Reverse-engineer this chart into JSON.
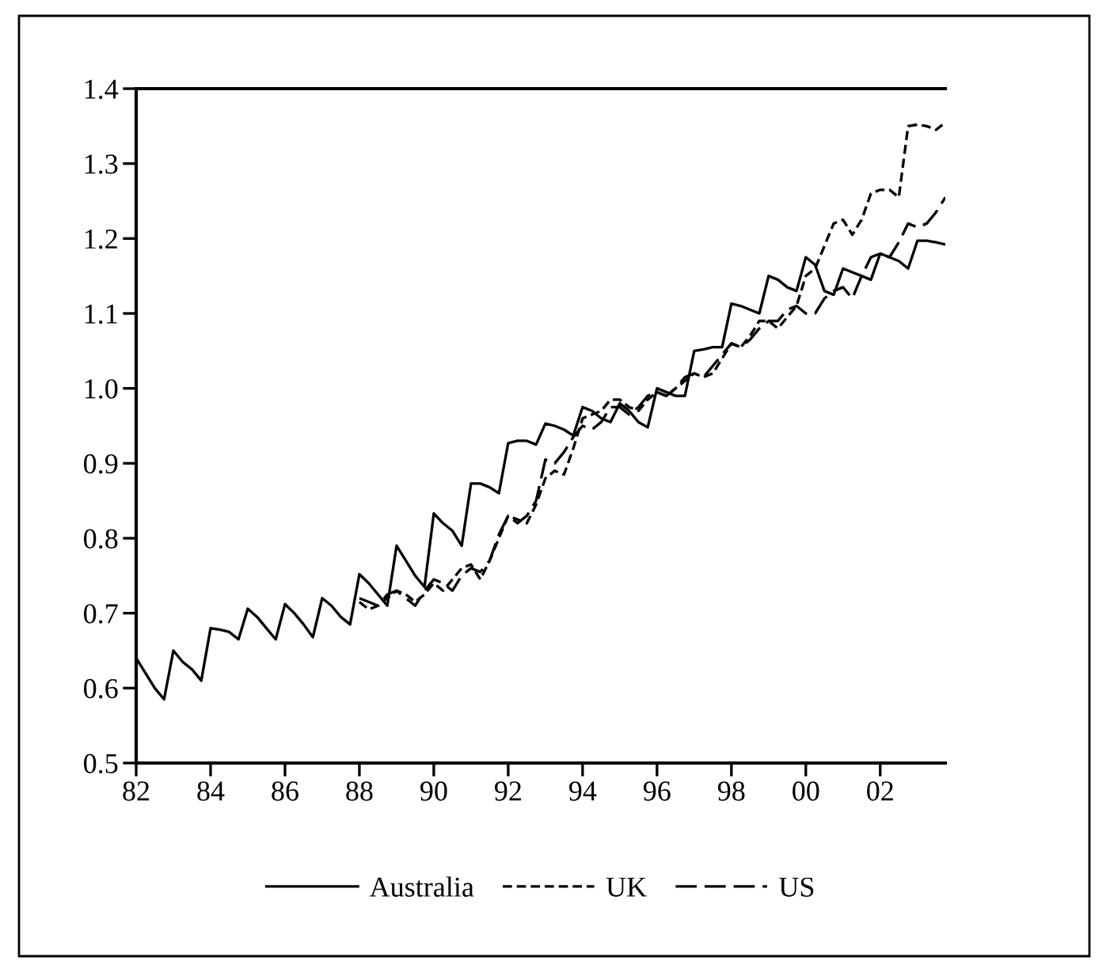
{
  "chart_data": {
    "type": "line",
    "x": [
      1982.0,
      1982.25,
      1982.5,
      1982.75,
      1983.0,
      1983.25,
      1983.5,
      1983.75,
      1984.0,
      1984.25,
      1984.5,
      1984.75,
      1985.0,
      1985.25,
      1985.5,
      1985.75,
      1986.0,
      1986.25,
      1986.5,
      1986.75,
      1987.0,
      1987.25,
      1987.5,
      1987.75,
      1988.0,
      1988.25,
      1988.5,
      1988.75,
      1989.0,
      1989.25,
      1989.5,
      1989.75,
      1990.0,
      1990.25,
      1990.5,
      1990.75,
      1991.0,
      1991.25,
      1991.5,
      1991.75,
      1992.0,
      1992.25,
      1992.5,
      1992.75,
      1993.0,
      1993.25,
      1993.5,
      1993.75,
      1994.0,
      1994.25,
      1994.5,
      1994.75,
      1995.0,
      1995.25,
      1995.5,
      1995.75,
      1996.0,
      1996.25,
      1996.5,
      1996.75,
      1997.0,
      1997.25,
      1997.5,
      1997.75,
      1998.0,
      1998.25,
      1998.5,
      1998.75,
      1999.0,
      1999.25,
      1999.5,
      1999.75,
      2000.0,
      2000.25,
      2000.5,
      2000.75,
      2001.0,
      2001.25,
      2001.5,
      2001.75,
      2002.0,
      2002.25,
      2002.5,
      2002.75,
      2003.0,
      2003.25,
      2003.5,
      2003.75
    ],
    "series": [
      {
        "name": "Australia",
        "color": "#000000",
        "line_style": "solid",
        "values": [
          0.64,
          0.62,
          0.6,
          0.585,
          0.65,
          0.635,
          0.625,
          0.61,
          0.68,
          0.678,
          0.675,
          0.665,
          0.706,
          0.695,
          0.68,
          0.665,
          0.712,
          0.7,
          0.685,
          0.668,
          0.72,
          0.71,
          0.695,
          0.685,
          0.752,
          0.74,
          0.725,
          0.71,
          0.79,
          0.77,
          0.75,
          0.735,
          0.833,
          0.82,
          0.81,
          0.79,
          0.873,
          0.873,
          0.868,
          0.86,
          0.927,
          0.93,
          0.93,
          0.925,
          0.953,
          0.95,
          0.945,
          0.937,
          0.975,
          0.97,
          0.96,
          0.955,
          0.98,
          0.97,
          0.955,
          0.948,
          1.0,
          0.995,
          0.99,
          0.99,
          1.05,
          1.052,
          1.055,
          1.055,
          1.113,
          1.11,
          1.105,
          1.1,
          1.15,
          1.145,
          1.135,
          1.13,
          1.175,
          1.165,
          1.13,
          1.125,
          1.16,
          1.155,
          1.15,
          1.145,
          1.18,
          1.175,
          1.17,
          1.16,
          1.197,
          1.197,
          1.195,
          1.192
        ]
      },
      {
        "name": "UK",
        "color": "#000000",
        "line_style": "dotted",
        "values": [
          null,
          null,
          null,
          null,
          null,
          null,
          null,
          null,
          null,
          null,
          null,
          null,
          null,
          null,
          null,
          null,
          null,
          null,
          null,
          null,
          null,
          null,
          null,
          null,
          0.715,
          0.705,
          0.71,
          0.72,
          0.73,
          0.725,
          0.715,
          0.725,
          0.74,
          0.73,
          0.745,
          0.76,
          0.765,
          0.745,
          0.77,
          0.8,
          0.83,
          0.825,
          0.82,
          0.845,
          0.88,
          0.89,
          0.885,
          0.92,
          0.96,
          0.965,
          0.97,
          0.985,
          0.985,
          0.975,
          0.97,
          0.985,
          0.995,
          0.99,
          1.0,
          1.01,
          1.02,
          1.015,
          1.02,
          1.04,
          1.06,
          1.055,
          1.07,
          1.09,
          1.09,
          1.08,
          1.095,
          1.11,
          1.15,
          1.16,
          1.19,
          1.22,
          1.225,
          1.205,
          1.225,
          1.26,
          1.265,
          1.265,
          1.255,
          1.35,
          1.352,
          1.35,
          1.345,
          1.355
        ]
      },
      {
        "name": "US",
        "color": "#000000",
        "line_style": "dashed",
        "values": [
          null,
          null,
          null,
          null,
          null,
          null,
          null,
          null,
          null,
          null,
          null,
          null,
          null,
          null,
          null,
          null,
          null,
          null,
          null,
          null,
          null,
          null,
          null,
          null,
          0.72,
          0.715,
          0.71,
          0.725,
          0.73,
          0.72,
          0.71,
          0.73,
          0.745,
          0.74,
          0.73,
          0.75,
          0.76,
          0.755,
          0.77,
          0.805,
          0.83,
          0.82,
          0.83,
          0.85,
          0.905,
          0.9,
          0.915,
          0.935,
          0.95,
          0.945,
          0.955,
          0.975,
          0.975,
          0.965,
          0.975,
          0.99,
          0.995,
          0.99,
          1.0,
          1.015,
          1.02,
          1.015,
          1.03,
          1.045,
          1.06,
          1.055,
          1.065,
          1.08,
          1.09,
          1.09,
          1.105,
          1.11,
          1.1,
          1.1,
          1.12,
          1.13,
          1.135,
          1.12,
          1.15,
          1.175,
          1.18,
          1.175,
          1.195,
          1.22,
          1.215,
          1.22,
          1.235,
          1.255
        ]
      }
    ],
    "xlim": [
      1982.0,
      2003.75
    ],
    "xticks": [
      {
        "value": 1982,
        "label": "82"
      },
      {
        "value": 1984,
        "label": "84"
      },
      {
        "value": 1986,
        "label": "86"
      },
      {
        "value": 1988,
        "label": "88"
      },
      {
        "value": 1990,
        "label": "90"
      },
      {
        "value": 1992,
        "label": "92"
      },
      {
        "value": 1994,
        "label": "94"
      },
      {
        "value": 1996,
        "label": "96"
      },
      {
        "value": 1998,
        "label": "98"
      },
      {
        "value": 2000,
        "label": "00"
      },
      {
        "value": 2002,
        "label": "02"
      }
    ],
    "ylim": [
      0.5,
      1.4
    ],
    "yticks": [
      {
        "value": 0.5,
        "label": "0.5"
      },
      {
        "value": 0.6,
        "label": "0.6"
      },
      {
        "value": 0.7,
        "label": "0.7"
      },
      {
        "value": 0.8,
        "label": "0.8"
      },
      {
        "value": 0.9,
        "label": "0.9"
      },
      {
        "value": 1.0,
        "label": "1.0"
      },
      {
        "value": 1.1,
        "label": "1.1"
      },
      {
        "value": 1.2,
        "label": "1.2"
      },
      {
        "value": 1.3,
        "label": "1.3"
      },
      {
        "value": 1.4,
        "label": "1.4"
      }
    ],
    "grid": false,
    "legend": "bottom"
  }
}
